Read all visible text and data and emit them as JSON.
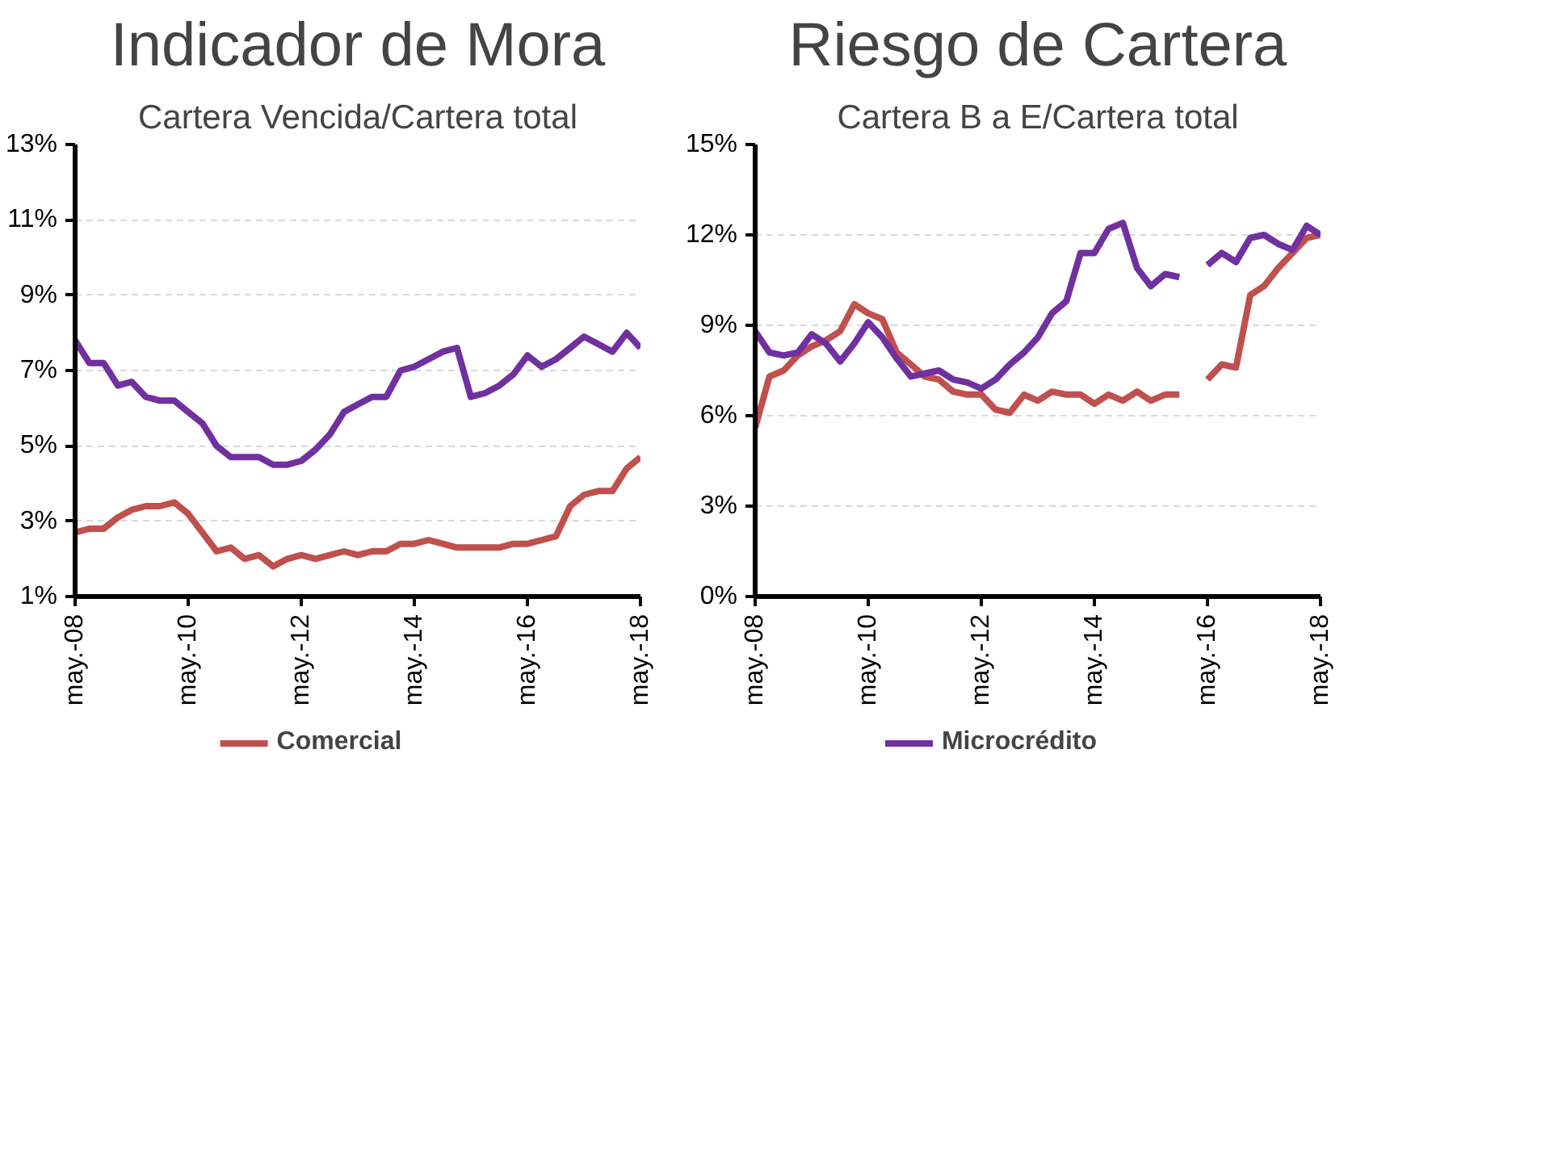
{
  "chart_data": [
    {
      "type": "line",
      "title": "Indicador de Mora",
      "subtitle": "Cartera Vencida/Cartera total",
      "x": [
        "2008-05",
        "2008-08",
        "2008-11",
        "2009-02",
        "2009-05",
        "2009-08",
        "2009-11",
        "2010-02",
        "2010-05",
        "2010-08",
        "2010-11",
        "2011-02",
        "2011-05",
        "2011-08",
        "2011-11",
        "2012-02",
        "2012-05",
        "2012-08",
        "2012-11",
        "2013-02",
        "2013-05",
        "2013-08",
        "2013-11",
        "2014-02",
        "2014-05",
        "2014-08",
        "2014-11",
        "2015-02",
        "2015-05",
        "2015-08",
        "2015-11",
        "2016-02",
        "2016-05",
        "2016-08",
        "2016-11",
        "2017-02",
        "2017-05",
        "2017-08",
        "2017-11",
        "2018-02",
        "2018-05"
      ],
      "series": [
        {
          "name": "Comercial",
          "color": "#c0504d",
          "values": [
            2.7,
            2.8,
            2.8,
            3.1,
            3.3,
            3.4,
            3.4,
            3.5,
            3.2,
            2.7,
            2.2,
            2.3,
            2.0,
            2.1,
            1.8,
            2.0,
            2.1,
            2.0,
            2.1,
            2.2,
            2.1,
            2.2,
            2.2,
            2.4,
            2.4,
            2.5,
            2.4,
            2.3,
            2.3,
            2.3,
            2.3,
            2.4,
            2.4,
            2.5,
            2.6,
            3.4,
            3.7,
            3.8,
            3.8,
            4.4,
            4.7
          ]
        },
        {
          "color": "#7030a0",
          "values": [
            7.8,
            7.2,
            7.2,
            6.6,
            6.7,
            6.3,
            6.2,
            6.2,
            5.9,
            5.6,
            5.0,
            4.7,
            4.7,
            4.7,
            4.5,
            4.5,
            4.6,
            4.9,
            5.3,
            5.9,
            6.1,
            6.3,
            6.3,
            7.0,
            7.1,
            7.3,
            7.5,
            7.6,
            6.3,
            6.4,
            6.6,
            6.9,
            7.4,
            7.1,
            7.3,
            7.6,
            7.9,
            7.7,
            7.5,
            8.0,
            7.6
          ]
        }
      ],
      "xlim": [
        "2008-05",
        "2018-05"
      ],
      "xticks": [
        {
          "value": "2008-05",
          "label": "may.-08"
        },
        {
          "value": "2010-05",
          "label": "may.-10"
        },
        {
          "value": "2012-05",
          "label": "may.-12"
        },
        {
          "value": "2014-05",
          "label": "may.-14"
        },
        {
          "value": "2016-05",
          "label": "may.-16"
        },
        {
          "value": "2018-05",
          "label": "may.-18"
        }
      ],
      "ylim": [
        1,
        13
      ],
      "yticks": [
        {
          "value": 1,
          "label": "1%"
        },
        {
          "value": 3,
          "label": "3%"
        },
        {
          "value": 5,
          "label": "5%"
        },
        {
          "value": 7,
          "label": "7%"
        },
        {
          "value": 9,
          "label": "9%"
        },
        {
          "value": 11,
          "label": "11%"
        },
        {
          "value": 13,
          "label": "13%"
        }
      ],
      "grid": "y",
      "legend": "bottom",
      "marker": "none",
      "line_style": "solid"
    },
    {
      "type": "line",
      "title": "Riesgo de Cartera",
      "subtitle": "Cartera B a E/Cartera total",
      "x": [
        "2008-05",
        "2008-08",
        "2008-11",
        "2009-02",
        "2009-05",
        "2009-08",
        "2009-11",
        "2010-02",
        "2010-05",
        "2010-08",
        "2010-11",
        "2011-02",
        "2011-05",
        "2011-08",
        "2011-11",
        "2012-02",
        "2012-05",
        "2012-08",
        "2012-11",
        "2013-02",
        "2013-05",
        "2013-08",
        "2013-11",
        "2014-02",
        "2014-05",
        "2014-08",
        "2014-11",
        "2015-02",
        "2015-05",
        "2015-08",
        "2015-11",
        "2016-02",
        "2016-05",
        "2016-08",
        "2016-11",
        "2017-02",
        "2017-05",
        "2017-08",
        "2017-11",
        "2018-02",
        "2018-05"
      ],
      "series": [
        {
          "color": "#c0504d",
          "values": [
            5.6,
            7.3,
            7.5,
            8.0,
            8.3,
            8.5,
            8.8,
            9.7,
            9.4,
            9.2,
            8.1,
            7.7,
            7.3,
            7.2,
            6.8,
            6.7,
            6.7,
            6.2,
            6.1,
            6.7,
            6.5,
            6.8,
            6.7,
            6.7,
            6.4,
            6.7,
            6.5,
            6.8,
            6.5,
            6.7,
            6.7,
            null,
            7.2,
            7.7,
            7.6,
            10.0,
            10.3,
            10.9,
            11.4,
            11.9,
            12.0
          ]
        },
        {
          "name": "Microcrédito",
          "color": "#7030a0",
          "values": [
            8.8,
            8.1,
            8.0,
            8.1,
            8.7,
            8.4,
            7.8,
            8.4,
            9.1,
            8.6,
            7.9,
            7.3,
            7.4,
            7.5,
            7.2,
            7.1,
            6.9,
            7.2,
            7.7,
            8.1,
            8.6,
            9.4,
            9.8,
            11.4,
            11.4,
            12.2,
            12.4,
            10.9,
            10.3,
            10.7,
            10.6,
            null,
            11.0,
            11.4,
            11.1,
            11.9,
            12.0,
            11.7,
            11.5,
            12.3,
            12.0
          ]
        }
      ],
      "xlim": [
        "2008-05",
        "2018-05"
      ],
      "xticks": [
        {
          "value": "2008-05",
          "label": "may.-08"
        },
        {
          "value": "2010-05",
          "label": "may.-10"
        },
        {
          "value": "2012-05",
          "label": "may.-12"
        },
        {
          "value": "2014-05",
          "label": "may.-14"
        },
        {
          "value": "2016-05",
          "label": "may.-16"
        },
        {
          "value": "2018-05",
          "label": "may.-18"
        }
      ],
      "ylim": [
        0,
        15
      ],
      "yticks": [
        {
          "value": 0,
          "label": "0%"
        },
        {
          "value": 3,
          "label": "3%"
        },
        {
          "value": 6,
          "label": "6%"
        },
        {
          "value": 9,
          "label": "9%"
        },
        {
          "value": 12,
          "label": "12%"
        },
        {
          "value": 15,
          "label": "15%"
        }
      ],
      "grid": "y",
      "legend": "bottom",
      "marker": "none",
      "line_style": "solid"
    }
  ]
}
